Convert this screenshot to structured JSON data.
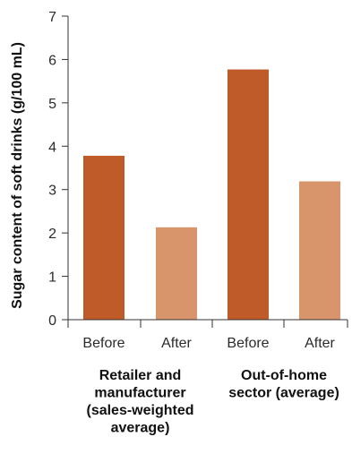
{
  "chart_data": {
    "type": "bar",
    "ylabel": "Sugar content of soft drinks (g/100 mL)",
    "xlabel": "",
    "ylim": [
      0,
      7
    ],
    "yticks": [
      0,
      1,
      2,
      3,
      4,
      5,
      6,
      7
    ],
    "categories": [
      "Before",
      "After",
      "Before",
      "After"
    ],
    "values": [
      3.78,
      2.13,
      5.77,
      3.19
    ],
    "bar_colors": [
      "#bf5a29",
      "#d8956c",
      "#bf5a29",
      "#d8956c"
    ],
    "groups": [
      {
        "label_lines": [
          "Retailer and",
          "manufacturer",
          "(sales-weighted",
          "average)"
        ],
        "categories": [
          0,
          1
        ]
      },
      {
        "label_lines": [
          "Out-of-home",
          "sector (average)"
        ],
        "categories": [
          2,
          3
        ]
      }
    ],
    "grid": false,
    "legend": "none"
  }
}
